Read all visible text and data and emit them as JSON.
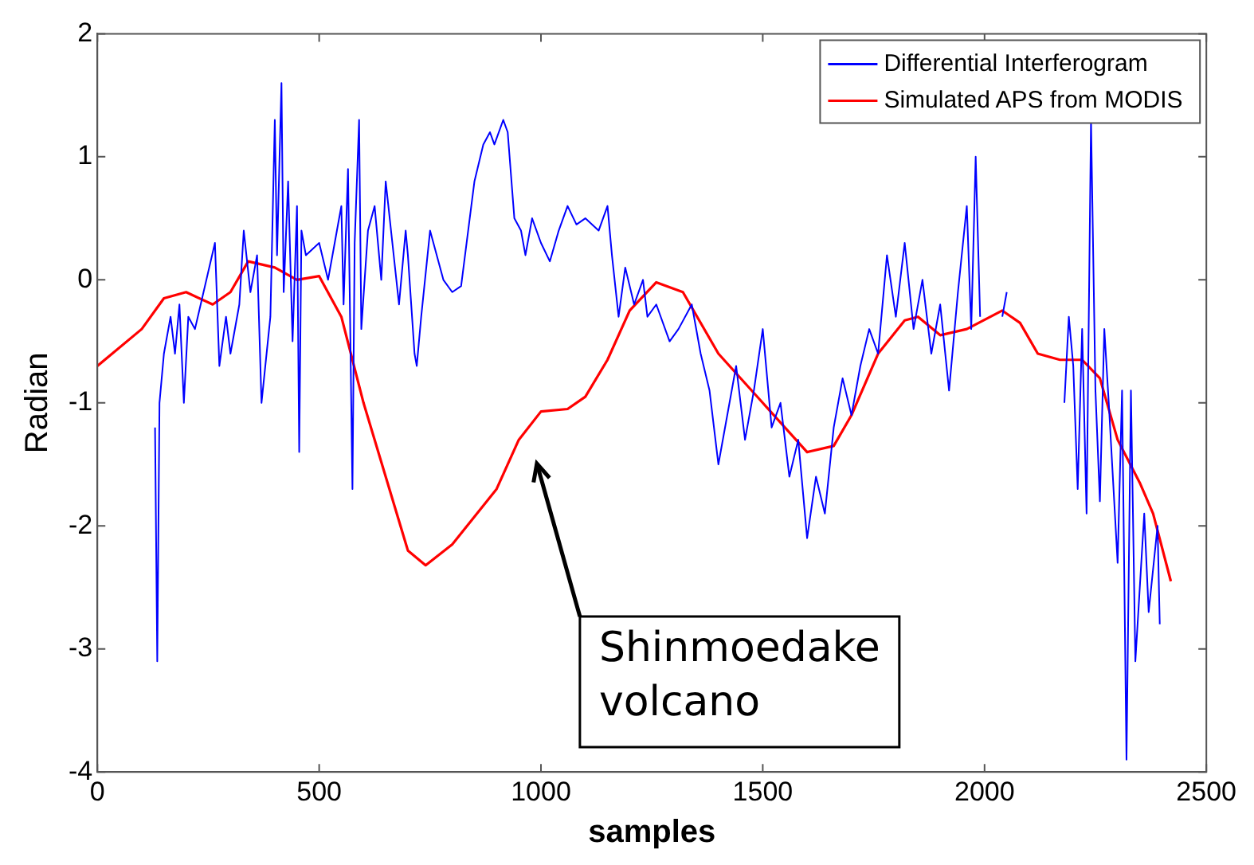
{
  "chart_data": {
    "type": "line",
    "xlabel": "samples",
    "ylabel": "Radian",
    "xlim": [
      0,
      2500
    ],
    "xticks": [
      0,
      500,
      1000,
      1500,
      2000,
      2500
    ],
    "ylim": [
      -4,
      2
    ],
    "yticks": [
      -4,
      -3,
      -2,
      -1,
      0,
      1,
      2
    ],
    "grid": false,
    "legend": "top right",
    "marker": "none",
    "line_style": "solid",
    "annotations": [
      "Shinmoedake volcano"
    ],
    "series": [
      {
        "name": "Differential Interferogram",
        "color": "#0000ff",
        "x": [
          130,
          135,
          140,
          150,
          165,
          175,
          185,
          195,
          205,
          220,
          265,
          275,
          290,
          300,
          320,
          330,
          345,
          360,
          370,
          390,
          400,
          405,
          415,
          420,
          430,
          440,
          450,
          455,
          460,
          470,
          500,
          520,
          540,
          550,
          555,
          565,
          575,
          580,
          590,
          595,
          610,
          625,
          640,
          650,
          665,
          680,
          695,
          700,
          715,
          720,
          730,
          750,
          780,
          800,
          820,
          850,
          870,
          885,
          895,
          915,
          925,
          940,
          955,
          965,
          980,
          1000,
          1020,
          1040,
          1060,
          1080,
          1100,
          1130,
          1150,
          1160,
          1175,
          1190,
          1210,
          1230,
          1240,
          1260,
          1290,
          1310,
          1340,
          1360,
          1380,
          1400,
          1420,
          1440,
          1460,
          1480,
          1500,
          1520,
          1540,
          1560,
          1580,
          1600,
          1620,
          1640,
          1660,
          1680,
          1700,
          1720,
          1740,
          1760,
          1780,
          1800,
          1820,
          1840,
          1860,
          1880,
          1900,
          1920,
          1940,
          1960,
          1970,
          1980,
          1990,
          2000,
          2040,
          2050,
          2060,
          2180,
          2190,
          2200,
          2210,
          2220,
          2230,
          2240,
          2250,
          2260,
          2270,
          2280,
          2300,
          2310,
          2320,
          2330,
          2340,
          2360,
          2370,
          2390,
          2395
        ],
        "values": [
          -1.2,
          -3.1,
          -1.0,
          -0.6,
          -0.3,
          -0.6,
          -0.2,
          -1.0,
          -0.3,
          -0.4,
          0.3,
          -0.7,
          -0.3,
          -0.6,
          -0.2,
          0.4,
          -0.1,
          0.2,
          -1.0,
          -0.3,
          1.3,
          0.2,
          1.6,
          -0.1,
          0.8,
          -0.5,
          0.6,
          -1.4,
          0.4,
          0.2,
          0.3,
          0.0,
          0.4,
          0.6,
          -0.2,
          0.9,
          -1.7,
          0.3,
          1.3,
          -0.4,
          0.4,
          0.6,
          0.0,
          0.8,
          0.3,
          -0.2,
          0.4,
          0.2,
          -0.6,
          -0.7,
          -0.3,
          0.4,
          0.0,
          -0.1,
          -0.05,
          0.8,
          1.1,
          1.2,
          1.1,
          1.3,
          1.2,
          0.5,
          0.4,
          0.2,
          0.5,
          0.3,
          0.15,
          0.4,
          0.6,
          0.45,
          0.5,
          0.4,
          0.6,
          0.2,
          -0.3,
          0.1,
          -0.2,
          0.0,
          -0.3,
          -0.2,
          -0.5,
          -0.4,
          -0.2,
          -0.6,
          -0.9,
          -1.5,
          -1.1,
          -0.7,
          -1.3,
          -0.9,
          -0.4,
          -1.2,
          -1.0,
          -1.6,
          -1.3,
          -2.1,
          -1.6,
          -1.9,
          -1.2,
          -0.8,
          -1.1,
          -0.7,
          -0.4,
          -0.6,
          0.2,
          -0.3,
          0.3,
          -0.4,
          0.0,
          -0.6,
          -0.2,
          -0.9,
          -0.1,
          0.6,
          -0.4,
          1.0,
          -0.3,
          null,
          -0.3,
          -0.1,
          null,
          -1.0,
          -0.3,
          -0.7,
          -1.7,
          -0.4,
          -1.9,
          1.3,
          -0.9,
          -1.8,
          -0.4,
          -1.0,
          -2.3,
          -0.9,
          -3.9,
          -0.9,
          -3.1,
          -1.9,
          -2.7,
          -2.0,
          -2.8
        ]
      },
      {
        "name": "Simulated APS from MODIS",
        "color": "#ff0000",
        "x": [
          0,
          100,
          150,
          200,
          260,
          300,
          340,
          400,
          450,
          500,
          550,
          600,
          650,
          700,
          740,
          800,
          900,
          950,
          1000,
          1060,
          1100,
          1150,
          1200,
          1260,
          1320,
          1400,
          1500,
          1600,
          1660,
          1700,
          1760,
          1820,
          1850,
          1900,
          1960,
          2040,
          2080,
          2120,
          2170,
          2220,
          2260,
          2300,
          2350,
          2380,
          2420
        ],
        "values": [
          -0.7,
          -0.4,
          -0.15,
          -0.1,
          -0.2,
          -0.1,
          0.15,
          0.1,
          0.0,
          0.03,
          -0.3,
          -1.0,
          -1.6,
          -2.2,
          -2.32,
          -2.15,
          -1.7,
          -1.3,
          -1.07,
          -1.05,
          -0.95,
          -0.65,
          -0.25,
          -0.02,
          -0.1,
          -0.6,
          -1.0,
          -1.4,
          -1.35,
          -1.1,
          -0.6,
          -0.33,
          -0.3,
          -0.45,
          -0.4,
          -0.25,
          -0.35,
          -0.6,
          -0.65,
          -0.65,
          -0.8,
          -1.3,
          -1.65,
          -1.9,
          -2.45
        ]
      }
    ]
  }
}
